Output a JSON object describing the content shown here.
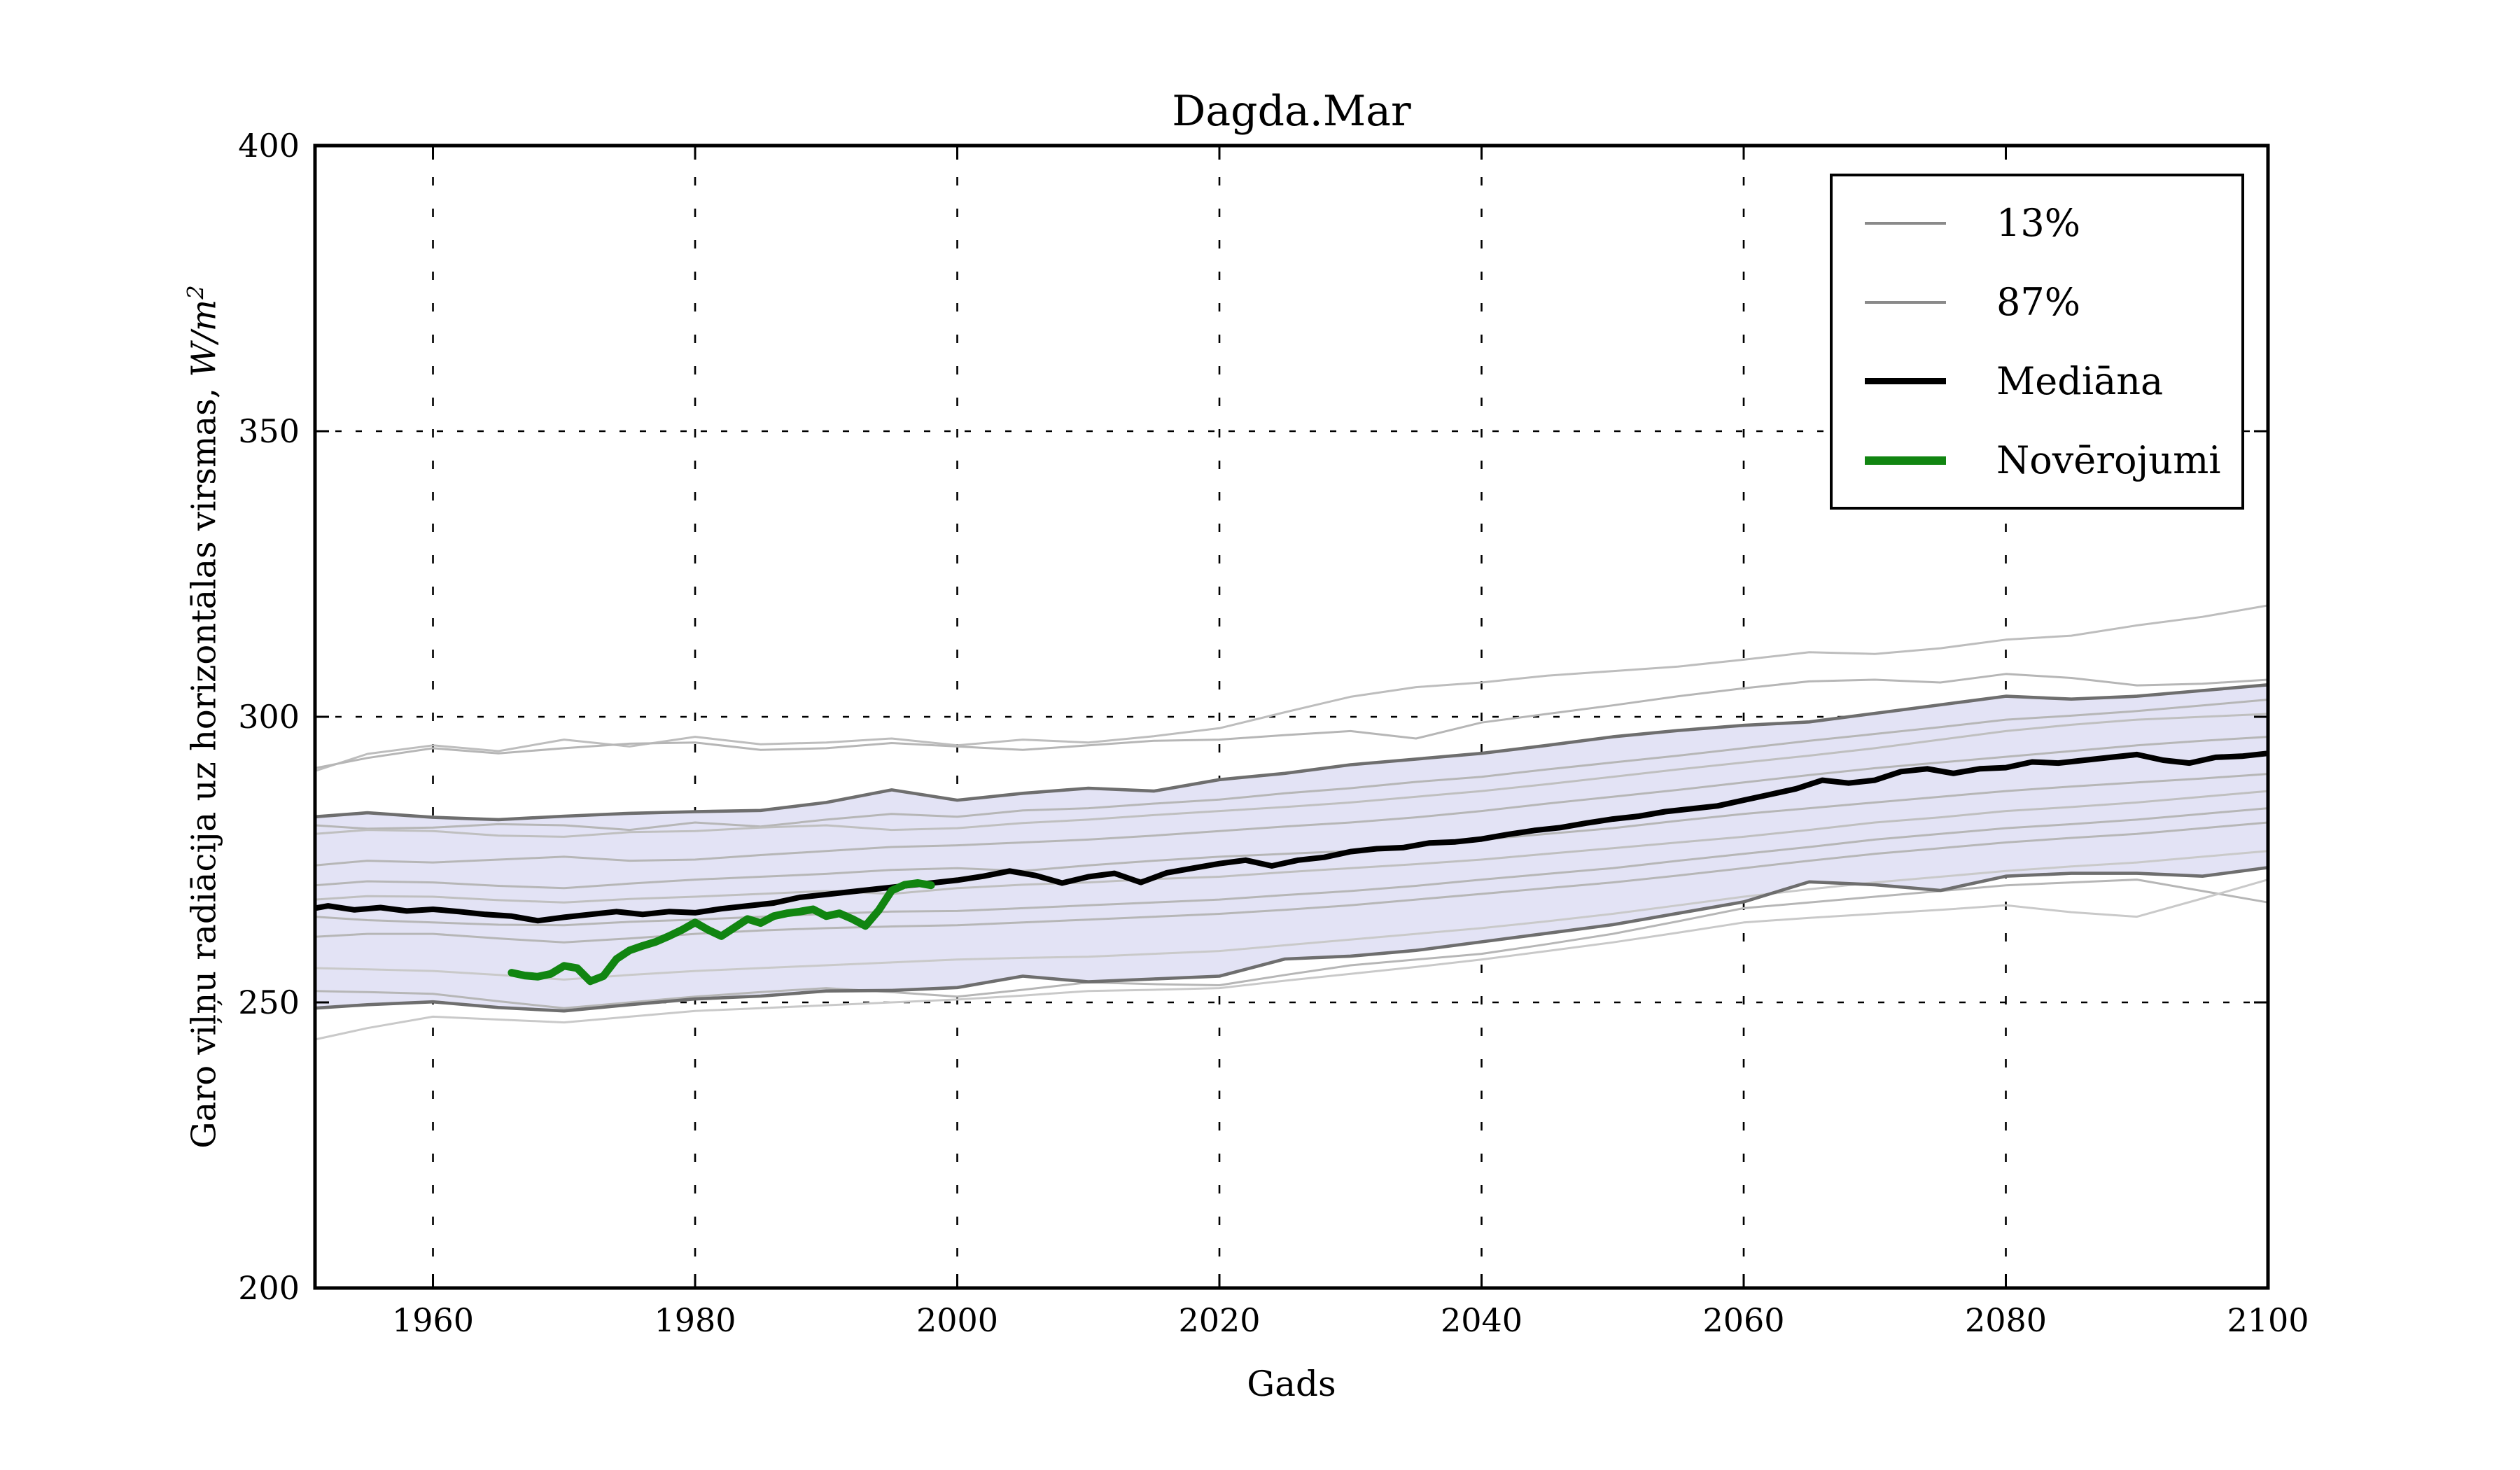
{
  "chart_data": {
    "type": "line",
    "title": "Dagda.Mar",
    "xlabel": "Gads",
    "ylabel": "Garo viļņu radiācija uz horizontālas virsmas, W/m²",
    "ylabel_text": "Garo viļņu radiācija uz horizontālas virsmas, ",
    "ylabel_units": "W/m",
    "ylabel_exponent": "2",
    "xlim": [
      1951,
      2100
    ],
    "ylim": [
      200,
      400
    ],
    "x_ticks": [
      1960,
      1980,
      2000,
      2020,
      2040,
      2060,
      2080,
      2100
    ],
    "y_ticks": [
      200,
      250,
      300,
      350,
      400
    ],
    "grid": true,
    "grid_color": "#000000",
    "background_color": "#ffffff",
    "legend": {
      "position": "upper right",
      "items": [
        {
          "label": "13%",
          "color": "#8a8a8a",
          "thickness": 4
        },
        {
          "label": "87%",
          "color": "#8a8a8a",
          "thickness": 4
        },
        {
          "label": "Mediāna",
          "color": "#000000",
          "thickness": 9
        },
        {
          "label": "Novērojumi",
          "color": "#118511",
          "thickness": 12
        }
      ]
    },
    "band": {
      "name": "13-87 percentile band",
      "fill_color": "#E3E3F5",
      "edge_color": "#6E6E6E",
      "years": [
        1951,
        1955,
        1960,
        1965,
        1970,
        1975,
        1980,
        1985,
        1990,
        1995,
        2000,
        2005,
        2010,
        2015,
        2020,
        2025,
        2030,
        2035,
        2040,
        2045,
        2050,
        2055,
        2060,
        2065,
        2070,
        2075,
        2080,
        2085,
        2090,
        2095,
        2100
      ],
      "upper_87": [
        282.5,
        283.2,
        282.4,
        282.0,
        282.6,
        283.1,
        283.4,
        283.6,
        285.0,
        287.2,
        285.4,
        286.6,
        287.5,
        287.0,
        289.0,
        290.1,
        291.6,
        292.6,
        293.6,
        295.0,
        296.5,
        297.6,
        298.5,
        299.1,
        300.6,
        302.1,
        303.6,
        303.1,
        303.6,
        304.6,
        305.6
      ],
      "lower_13": [
        249.0,
        249.6,
        250.1,
        249.1,
        248.5,
        249.6,
        250.6,
        251.1,
        252.0,
        252.1,
        252.6,
        254.6,
        253.6,
        254.1,
        254.6,
        257.6,
        258.1,
        259.1,
        260.6,
        262.1,
        263.6,
        265.6,
        267.6,
        271.1,
        270.6,
        269.6,
        272.1,
        272.6,
        272.6,
        272.1,
        273.6
      ]
    },
    "ensemble": {
      "color_default": "#b6b6b6",
      "years": [
        1951,
        1955,
        1960,
        1965,
        1970,
        1975,
        1980,
        1985,
        1990,
        1995,
        2000,
        2005,
        2010,
        2015,
        2020,
        2025,
        2030,
        2035,
        2040,
        2045,
        2050,
        2055,
        2060,
        2065,
        2070,
        2075,
        2080,
        2085,
        2090,
        2095,
        2100
      ],
      "members": [
        {
          "name": "run-top-1",
          "color": "#bdbdbd",
          "values": [
            290.5,
            293.5,
            295.0,
            294.0,
            296.0,
            294.8,
            296.5,
            295.2,
            295.5,
            296.2,
            295.0,
            296.0,
            295.5,
            296.6,
            298.0,
            300.8,
            303.5,
            305.2,
            306.0,
            307.2,
            308.0,
            308.8,
            310.0,
            311.3,
            311.0,
            312.0,
            313.5,
            314.2,
            316.0,
            317.5,
            319.5
          ]
        },
        {
          "name": "run-top-2",
          "color": "#b6b6b6",
          "values": [
            291.0,
            292.8,
            294.5,
            293.6,
            294.5,
            295.3,
            295.5,
            294.2,
            294.5,
            295.4,
            294.8,
            294.2,
            295.0,
            295.8,
            296.0,
            296.8,
            297.5,
            296.2,
            299.0,
            300.5,
            302.0,
            303.6,
            305.0,
            306.2,
            306.5,
            306.0,
            307.5,
            306.8,
            305.5,
            305.8,
            306.5
          ]
        },
        {
          "name": "run-b1",
          "color": "#b6b6b6",
          "values": [
            281.0,
            280.4,
            280.6,
            281.2,
            281.0,
            280.2,
            281.5,
            280.8,
            282.0,
            283.0,
            282.5,
            283.6,
            284.0,
            284.8,
            285.5,
            286.6,
            287.5,
            288.6,
            289.5,
            290.8,
            292.0,
            293.2,
            294.5,
            295.8,
            297.0,
            298.2,
            299.5,
            300.2,
            301.0,
            302.0,
            303.0
          ]
        },
        {
          "name": "run-b2",
          "color": "#bfbfbf",
          "values": [
            279.5,
            280.2,
            280.0,
            279.2,
            279.0,
            279.8,
            280.0,
            280.6,
            281.0,
            280.2,
            280.5,
            281.4,
            282.0,
            282.8,
            283.5,
            284.2,
            285.0,
            286.0,
            287.0,
            288.2,
            289.5,
            290.8,
            292.0,
            293.2,
            294.5,
            296.0,
            297.5,
            298.6,
            299.5,
            300.0,
            300.5
          ]
        },
        {
          "name": "run-b3",
          "color": "#b6b6b6",
          "values": [
            274.0,
            274.8,
            274.5,
            275.0,
            275.5,
            274.8,
            275.0,
            275.8,
            276.5,
            277.2,
            277.5,
            278.0,
            278.5,
            279.2,
            280.0,
            280.8,
            281.5,
            282.4,
            283.5,
            284.8,
            286.0,
            287.2,
            288.5,
            289.8,
            291.0,
            292.0,
            293.0,
            294.0,
            295.0,
            295.8,
            296.5
          ]
        },
        {
          "name": "run-b4",
          "color": "#b6b6b6",
          "values": [
            270.5,
            271.2,
            271.0,
            270.4,
            270.0,
            270.8,
            271.5,
            272.0,
            272.5,
            273.2,
            273.5,
            273.0,
            274.0,
            274.8,
            275.5,
            276.0,
            276.5,
            277.5,
            278.5,
            279.5,
            280.5,
            281.8,
            283.0,
            284.0,
            285.0,
            286.0,
            287.0,
            287.8,
            288.5,
            289.2,
            290.0
          ]
        },
        {
          "name": "run-b5",
          "color": "#bfbfbf",
          "values": [
            268.0,
            268.6,
            268.5,
            267.9,
            267.5,
            268.1,
            268.5,
            269.0,
            269.5,
            269.0,
            270.0,
            270.6,
            271.0,
            271.6,
            272.0,
            272.8,
            273.5,
            274.2,
            275.0,
            276.0,
            277.0,
            278.0,
            279.0,
            280.2,
            281.5,
            282.4,
            283.5,
            284.2,
            285.0,
            286.0,
            287.0
          ]
        },
        {
          "name": "run-c1",
          "color": "#b6b6b6",
          "values": [
            265.0,
            264.4,
            264.0,
            263.6,
            263.5,
            264.1,
            264.5,
            265.0,
            265.5,
            265.9,
            266.0,
            266.5,
            267.0,
            267.5,
            268.0,
            268.8,
            269.5,
            270.4,
            271.5,
            272.5,
            273.5,
            274.8,
            276.0,
            277.2,
            278.5,
            279.5,
            280.5,
            281.2,
            282.0,
            283.0,
            284.0
          ]
        },
        {
          "name": "run-c2",
          "color": "#b6b6b6",
          "values": [
            261.5,
            262.0,
            262.0,
            261.2,
            260.5,
            261.2,
            262.0,
            262.6,
            263.0,
            263.3,
            263.5,
            264.0,
            264.5,
            265.0,
            265.5,
            266.2,
            267.0,
            268.0,
            269.0,
            270.0,
            271.0,
            272.2,
            273.5,
            274.8,
            276.0,
            277.0,
            278.0,
            278.8,
            279.5,
            280.5,
            281.5
          ]
        },
        {
          "name": "run-c3",
          "color": "#c9c9c9",
          "values": [
            256.0,
            255.8,
            255.5,
            254.8,
            254.0,
            254.8,
            255.5,
            256.0,
            256.5,
            257.0,
            257.5,
            257.8,
            258.0,
            258.5,
            259.0,
            260.0,
            261.0,
            262.0,
            263.0,
            264.2,
            265.5,
            267.0,
            268.5,
            269.8,
            271.0,
            272.0,
            273.0,
            273.8,
            274.5,
            275.5,
            276.5
          ]
        },
        {
          "name": "run-d1",
          "color": "#b6b6b6",
          "values": [
            252.0,
            251.8,
            251.5,
            250.2,
            249.0,
            250.0,
            251.0,
            251.8,
            252.5,
            251.8,
            251.0,
            252.2,
            253.5,
            253.2,
            253.0,
            254.8,
            256.5,
            257.5,
            258.5,
            260.2,
            262.0,
            264.2,
            266.5,
            267.5,
            268.5,
            269.5,
            270.5,
            271.0,
            271.5,
            269.5,
            267.5
          ]
        },
        {
          "name": "run-d2",
          "color": "#c9c9c9",
          "values": [
            243.5,
            245.5,
            247.5,
            247.0,
            246.5,
            247.5,
            248.5,
            249.0,
            249.5,
            250.0,
            250.5,
            251.2,
            252.0,
            252.2,
            252.5,
            253.8,
            255.0,
            256.2,
            257.5,
            259.0,
            260.5,
            262.2,
            264.0,
            264.8,
            265.5,
            266.2,
            267.0,
            265.8,
            265.0,
            268.2,
            271.5
          ]
        }
      ]
    },
    "median": {
      "name": "Mediāna",
      "color": "#000000",
      "years": [
        1951,
        1952,
        1954,
        1956,
        1958,
        1960,
        1962,
        1964,
        1966,
        1968,
        1970,
        1972,
        1974,
        1976,
        1978,
        1980,
        1982,
        1984,
        1986,
        1988,
        1990,
        1992,
        1994,
        1996,
        1998,
        2000,
        2002,
        2004,
        2006,
        2008,
        2010,
        2012,
        2014,
        2016,
        2018,
        2020,
        2022,
        2024,
        2026,
        2028,
        2030,
        2032,
        2034,
        2036,
        2038,
        2040,
        2042,
        2044,
        2046,
        2048,
        2050,
        2052,
        2054,
        2056,
        2058,
        2060,
        2062,
        2064,
        2066,
        2068,
        2070,
        2072,
        2074,
        2076,
        2078,
        2080,
        2082,
        2084,
        2086,
        2088,
        2090,
        2092,
        2094,
        2096,
        2098,
        2100
      ],
      "values": [
        266.5,
        266.9,
        266.2,
        266.6,
        266.0,
        266.3,
        265.9,
        265.4,
        265.1,
        264.3,
        264.9,
        265.4,
        265.9,
        265.4,
        265.9,
        265.7,
        266.4,
        266.9,
        267.4,
        268.4,
        268.9,
        269.4,
        269.9,
        270.4,
        270.9,
        271.4,
        272.1,
        273.0,
        272.2,
        270.9,
        272.0,
        272.6,
        271.0,
        272.7,
        273.5,
        274.3,
        274.9,
        273.9,
        274.9,
        275.4,
        276.4,
        276.9,
        277.1,
        277.9,
        278.1,
        278.6,
        279.4,
        280.1,
        280.6,
        281.4,
        282.1,
        282.6,
        283.4,
        283.9,
        284.4,
        285.4,
        286.4,
        287.4,
        288.9,
        288.4,
        288.9,
        290.4,
        290.9,
        290.1,
        290.9,
        291.1,
        292.1,
        291.9,
        292.4,
        292.9,
        293.4,
        292.4,
        291.9,
        292.9,
        293.1,
        293.6
      ]
    },
    "observations": {
      "name": "Novērojumi",
      "color": "#118511",
      "years": [
        1966,
        1967,
        1968,
        1969,
        1970,
        1971,
        1972,
        1973,
        1974,
        1975,
        1976,
        1977,
        1978,
        1979,
        1980,
        1981,
        1982,
        1983,
        1984,
        1985,
        1986,
        1987,
        1988,
        1989,
        1990,
        1991,
        1992,
        1993,
        1994,
        1995,
        1996,
        1997,
        1998
      ],
      "values": [
        255.2,
        254.7,
        254.5,
        255.0,
        256.4,
        256.0,
        253.7,
        254.6,
        257.6,
        259.1,
        259.9,
        260.6,
        261.6,
        262.7,
        264.0,
        262.7,
        261.6,
        263.1,
        264.6,
        263.9,
        265.1,
        265.6,
        265.9,
        266.3,
        265.1,
        265.6,
        264.6,
        263.4,
        266.1,
        269.6,
        270.6,
        270.9,
        270.5
      ]
    }
  }
}
